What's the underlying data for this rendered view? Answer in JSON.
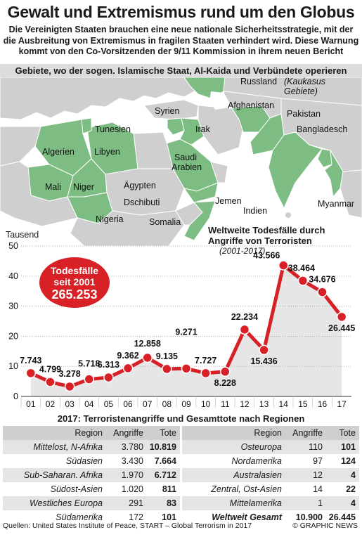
{
  "header": {
    "title": "Gewalt und Extremismus rund um den Globus",
    "subtitle": "Die Vereinigten Staaten brauchen eine neue nationale Sicherheitsstrategie, mit der die Ausbreitung von Extremismus in fragilen Staaten verhindert wird. Diese Warnung kommt von den Co-Vorsitzenden der 9/11 Kommission in ihrem neuen Bericht"
  },
  "map": {
    "heading": "Gebiete, wo der sogen. Islamische Staat, Al-Kaida und Verbündete operieren",
    "colors": {
      "land": "#cfcfcf",
      "highlight": "#7dbd84",
      "border": "#ffffff"
    },
    "labels": {
      "russland": "Russland",
      "kaukasus": "(Kaukasus",
      "gebiete": "Gebiete)",
      "tunesien": "Tunesien",
      "syrien": "Syrien",
      "afghanistan": "Afghanistan",
      "pakistan": "Pakistan",
      "irak": "Irak",
      "bangladesch": "Bangladesch",
      "algerien": "Algerien",
      "libyen": "Libyen",
      "saudi": "Saudi",
      "arabien": "Arabien",
      "mali": "Mali",
      "niger": "Niger",
      "aegypten": "Ägypten",
      "indien": "Indien",
      "jemen": "Jemen",
      "dschibuti": "Dschibuti",
      "myanmar": "Myanmar",
      "nigeria": "Nigeria",
      "somalia": "Somalia"
    }
  },
  "chart_data": {
    "type": "line",
    "title": "Weltweite Todesfälle durch Angriffe von Terroristen",
    "subtitle": "(2001-2017)",
    "ylabel": "Tausend",
    "ylim": [
      0,
      50
    ],
    "yticks": [
      "0",
      "10",
      "20",
      "30",
      "40",
      "50"
    ],
    "categories": [
      "01",
      "02",
      "03",
      "04",
      "05",
      "06",
      "07",
      "08",
      "09",
      "10",
      "11",
      "12",
      "13",
      "14",
      "15",
      "16",
      "17"
    ],
    "values": [
      7.743,
      4.799,
      3.278,
      5.718,
      6.313,
      9.362,
      12.858,
      9.135,
      9.271,
      7.727,
      8.228,
      22.234,
      15.436,
      43.566,
      38.464,
      34.676,
      26.445
    ],
    "value_labels": [
      "7.743",
      "4.799",
      "3.278",
      "5.718",
      "6.313",
      "9.362",
      "12.858",
      "9.135",
      "9.271",
      "7.727",
      "8.228",
      "22.234",
      "15.436",
      "43.566",
      "38.464",
      "34.676",
      "26.445"
    ],
    "colors": {
      "line": "#d82027",
      "area": "#e6e6e6"
    },
    "badge": {
      "line1": "Todesfälle",
      "line2": "seit 2001",
      "line3": "265.253"
    }
  },
  "table": {
    "title": "2017: Terroristenangriffe und Gesamttote nach Regionen",
    "headers": {
      "region": "Region",
      "attacks": "Angriffe",
      "deaths": "Tote"
    },
    "left": [
      {
        "region": "Mittelost, N-Afrika",
        "attacks": "3.780",
        "deaths": "10.819"
      },
      {
        "region": "Südasien",
        "attacks": "3.430",
        "deaths": "7.664"
      },
      {
        "region": "Sub-Saharan. Afrika",
        "attacks": "1.970",
        "deaths": "6.712"
      },
      {
        "region": "Südost-Asien",
        "attacks": "1.020",
        "deaths": "811"
      },
      {
        "region": "Westliches Europa",
        "attacks": "291",
        "deaths": "83"
      },
      {
        "region": "Südamerika",
        "attacks": "172",
        "deaths": "101"
      }
    ],
    "right": [
      {
        "region": "Osteuropa",
        "attacks": "110",
        "deaths": "101"
      },
      {
        "region": "Nordamerika",
        "attacks": "97",
        "deaths": "124"
      },
      {
        "region": "Australasien",
        "attacks": "12",
        "deaths": "4"
      },
      {
        "region": "Zentral, Ost-Asien",
        "attacks": "14",
        "deaths": "22"
      },
      {
        "region": "Mittelamerika",
        "attacks": "1",
        "deaths": "4"
      },
      {
        "region": "Weltweit Gesamt",
        "attacks": "10.900",
        "deaths": "26.445"
      }
    ]
  },
  "footer": {
    "source": "Quellen: United States Institute of Peace, START – Global Terrorism in 2017",
    "credit": "© GRAPHIC NEWS"
  }
}
